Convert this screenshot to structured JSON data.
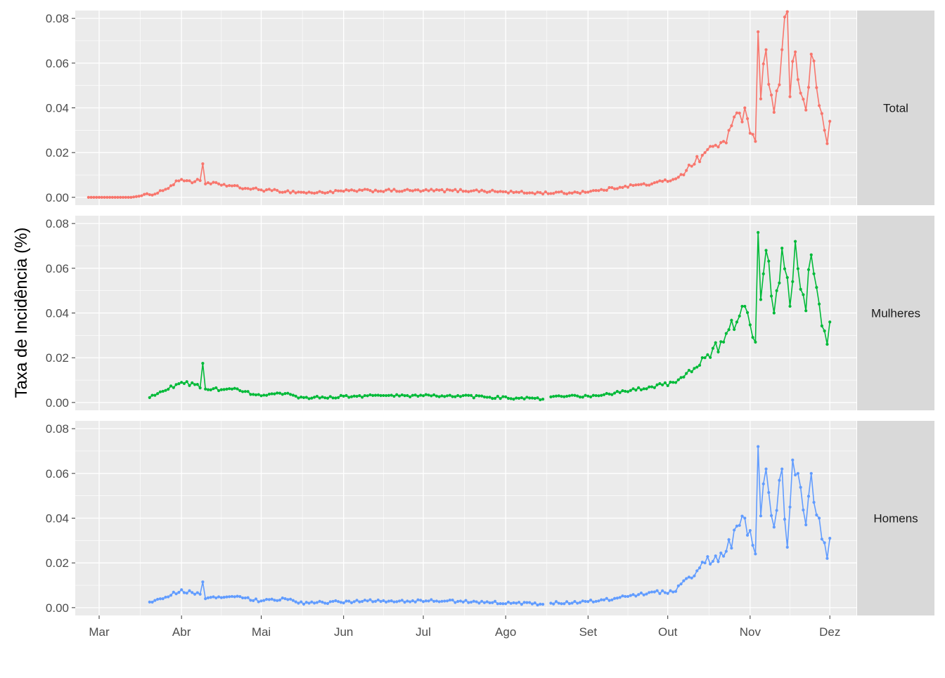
{
  "chart_data": {
    "type": "line",
    "ylabel": "Taxa de Incidência (%)",
    "xlabel": "",
    "grid": true,
    "legend": "none",
    "x_axis": {
      "type": "date",
      "range": [
        "2020-02-21",
        "2020-12-11"
      ],
      "ticks": [
        {
          "date": "2020-03-01",
          "label": "Mar"
        },
        {
          "date": "2020-04-01",
          "label": "Abr"
        },
        {
          "date": "2020-05-01",
          "label": "Mai"
        },
        {
          "date": "2020-06-01",
          "label": "Jun"
        },
        {
          "date": "2020-07-01",
          "label": "Jul"
        },
        {
          "date": "2020-08-01",
          "label": "Ago"
        },
        {
          "date": "2020-09-01",
          "label": "Set"
        },
        {
          "date": "2020-10-01",
          "label": "Out"
        },
        {
          "date": "2020-11-01",
          "label": "Nov"
        },
        {
          "date": "2020-12-01",
          "label": "Dez"
        }
      ]
    },
    "y_axis": {
      "range": [
        -0.0035,
        0.0835
      ],
      "ticks": [
        0.0,
        0.02,
        0.04,
        0.06,
        0.08
      ],
      "tick_labels": [
        "0.00",
        "0.02",
        "0.04",
        "0.06",
        "0.08"
      ]
    },
    "facets": [
      {
        "name": "Total",
        "color": "#F8766D",
        "start": "2020-02-26",
        "key_points": [
          [
            "2020-02-26",
            0.0
          ],
          [
            "2020-03-13",
            0.0
          ],
          [
            "2020-03-20",
            0.0012
          ],
          [
            "2020-03-25",
            0.003
          ],
          [
            "2020-04-01",
            0.008
          ],
          [
            "2020-04-06",
            0.007
          ],
          [
            "2020-04-08",
            0.0075
          ],
          [
            "2020-04-09",
            0.015
          ],
          [
            "2020-04-10",
            0.006
          ],
          [
            "2020-04-15",
            0.006
          ],
          [
            "2020-04-25",
            0.004
          ],
          [
            "2020-05-05",
            0.003
          ],
          [
            "2020-05-20",
            0.002
          ],
          [
            "2020-06-05",
            0.003
          ],
          [
            "2020-07-01",
            0.003
          ],
          [
            "2020-07-20",
            0.003
          ],
          [
            "2020-08-10",
            0.002
          ],
          [
            "2020-08-25",
            0.002
          ],
          [
            "2020-09-05",
            0.003
          ],
          [
            "2020-09-15",
            0.005
          ],
          [
            "2020-09-25",
            0.006
          ],
          [
            "2020-10-03",
            0.008
          ],
          [
            "2020-10-08",
            0.012
          ],
          [
            "2020-10-15",
            0.02
          ],
          [
            "2020-10-22",
            0.025
          ],
          [
            "2020-10-30",
            0.04
          ],
          [
            "2020-11-03",
            0.025
          ],
          [
            "2020-11-04",
            0.074
          ],
          [
            "2020-11-05",
            0.044
          ],
          [
            "2020-11-07",
            0.066
          ],
          [
            "2020-11-10",
            0.038
          ],
          [
            "2020-11-13",
            0.066
          ],
          [
            "2020-11-15",
            0.083
          ],
          [
            "2020-11-16",
            0.045
          ],
          [
            "2020-11-18",
            0.065
          ],
          [
            "2020-11-22",
            0.039
          ],
          [
            "2020-11-24",
            0.064
          ],
          [
            "2020-11-27",
            0.041
          ],
          [
            "2020-11-29",
            0.03
          ],
          [
            "2020-11-30",
            0.024
          ],
          [
            "2020-12-01",
            0.034
          ]
        ]
      },
      {
        "name": "Mulheres",
        "color": "#00BA38",
        "start": "2020-03-20",
        "gap": [
          "2020-08-16",
          "2020-08-17"
        ],
        "key_points": [
          [
            "2020-03-20",
            0.0022
          ],
          [
            "2020-03-25",
            0.005
          ],
          [
            "2020-04-01",
            0.009
          ],
          [
            "2020-04-06",
            0.008
          ],
          [
            "2020-04-08",
            0.0065
          ],
          [
            "2020-04-09",
            0.0175
          ],
          [
            "2020-04-10",
            0.006
          ],
          [
            "2020-04-20",
            0.006
          ],
          [
            "2020-05-01",
            0.003
          ],
          [
            "2020-05-10",
            0.004
          ],
          [
            "2020-05-15",
            0.002
          ],
          [
            "2020-06-10",
            0.003
          ],
          [
            "2020-07-10",
            0.003
          ],
          [
            "2020-08-05",
            0.002
          ],
          [
            "2020-08-15",
            0.0015
          ],
          [
            "2020-08-18",
            0.0025
          ],
          [
            "2020-09-05",
            0.003
          ],
          [
            "2020-09-15",
            0.005
          ],
          [
            "2020-09-25",
            0.007
          ],
          [
            "2020-10-03",
            0.009
          ],
          [
            "2020-10-08",
            0.013
          ],
          [
            "2020-10-15",
            0.02
          ],
          [
            "2020-10-22",
            0.027
          ],
          [
            "2020-10-30",
            0.043
          ],
          [
            "2020-11-03",
            0.027
          ],
          [
            "2020-11-04",
            0.076
          ],
          [
            "2020-11-05",
            0.046
          ],
          [
            "2020-11-07",
            0.068
          ],
          [
            "2020-11-10",
            0.04
          ],
          [
            "2020-11-13",
            0.069
          ],
          [
            "2020-11-16",
            0.043
          ],
          [
            "2020-11-18",
            0.072
          ],
          [
            "2020-11-22",
            0.041
          ],
          [
            "2020-11-24",
            0.066
          ],
          [
            "2020-11-27",
            0.044
          ],
          [
            "2020-11-29",
            0.032
          ],
          [
            "2020-11-30",
            0.026
          ],
          [
            "2020-12-01",
            0.036
          ]
        ]
      },
      {
        "name": "Homens",
        "color": "#619CFF",
        "start": "2020-03-20",
        "gap": [
          "2020-08-16",
          "2020-08-17"
        ],
        "key_points": [
          [
            "2020-03-20",
            0.0025
          ],
          [
            "2020-03-25",
            0.004
          ],
          [
            "2020-04-01",
            0.008
          ],
          [
            "2020-04-06",
            0.006
          ],
          [
            "2020-04-08",
            0.006
          ],
          [
            "2020-04-09",
            0.0115
          ],
          [
            "2020-04-10",
            0.004
          ],
          [
            "2020-04-20",
            0.005
          ],
          [
            "2020-05-01",
            0.003
          ],
          [
            "2020-05-10",
            0.004
          ],
          [
            "2020-05-15",
            0.002
          ],
          [
            "2020-06-10",
            0.003
          ],
          [
            "2020-07-10",
            0.003
          ],
          [
            "2020-08-05",
            0.002
          ],
          [
            "2020-08-15",
            0.0015
          ],
          [
            "2020-08-18",
            0.002
          ],
          [
            "2020-09-05",
            0.003
          ],
          [
            "2020-09-15",
            0.005
          ],
          [
            "2020-09-25",
            0.007
          ],
          [
            "2020-10-03",
            0.007
          ],
          [
            "2020-10-08",
            0.013
          ],
          [
            "2020-10-15",
            0.02
          ],
          [
            "2020-10-22",
            0.023
          ],
          [
            "2020-10-30",
            0.04
          ],
          [
            "2020-11-03",
            0.024
          ],
          [
            "2020-11-04",
            0.072
          ],
          [
            "2020-11-05",
            0.041
          ],
          [
            "2020-11-07",
            0.062
          ],
          [
            "2020-11-10",
            0.036
          ],
          [
            "2020-11-13",
            0.062
          ],
          [
            "2020-11-15",
            0.027
          ],
          [
            "2020-11-17",
            0.066
          ],
          [
            "2020-11-19",
            0.06
          ],
          [
            "2020-11-22",
            0.037
          ],
          [
            "2020-11-24",
            0.06
          ],
          [
            "2020-11-27",
            0.04
          ],
          [
            "2020-11-29",
            0.029
          ],
          [
            "2020-11-30",
            0.022
          ],
          [
            "2020-12-01",
            0.031
          ]
        ]
      }
    ]
  }
}
